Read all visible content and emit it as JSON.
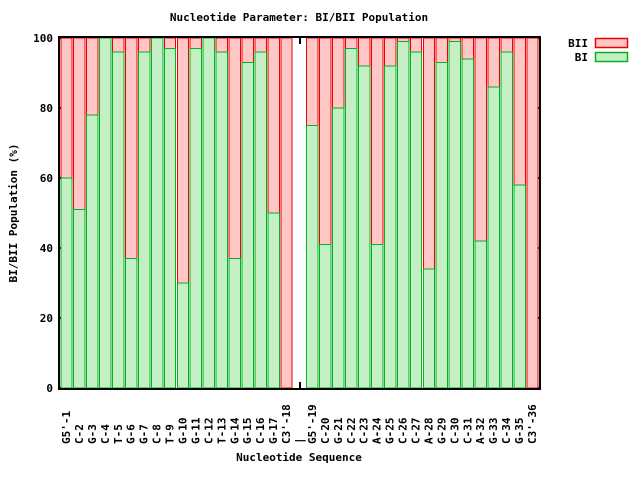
{
  "window": {
    "background": "#ffffff",
    "text_color": "#000000"
  },
  "chart_data": {
    "type": "bar",
    "stacked": true,
    "title": "Nucleotide Parameter: BI/BII Population",
    "xlabel": "Nucleotide Sequence",
    "ylabel": "BI/BII Population (%)",
    "ylim": [
      0,
      100
    ],
    "yticks": [
      0,
      20,
      40,
      60,
      80,
      100
    ],
    "grid": false,
    "legend_position": "top-right-outside",
    "axis_color": "#000000",
    "separator_index": 18,
    "categories": [
      "G5'-1",
      "C-2",
      "G-3",
      "C-4",
      "T-5",
      "G-6",
      "G-7",
      "C-8",
      "T-9",
      "G-10",
      "G-11",
      "C-12",
      "T-13",
      "G-14",
      "G-15",
      "C-16",
      "G-17",
      "C3'-18",
      "|",
      "G5'-19",
      "C-20",
      "G-21",
      "C-22",
      "C-23",
      "A-24",
      "G-25",
      "C-26",
      "C-27",
      "A-28",
      "G-29",
      "C-30",
      "C-31",
      "A-32",
      "G-33",
      "C-34",
      "G-35",
      "C3'-36"
    ],
    "series": [
      {
        "name": "BII",
        "fill": "#ffc6c6",
        "stroke": "#f00000",
        "values": [
          40,
          49,
          22,
          0,
          4,
          63,
          4,
          0,
          3,
          70,
          3,
          0,
          4,
          63,
          7,
          4,
          50,
          100,
          null,
          25,
          59,
          20,
          3,
          8,
          59,
          8,
          1,
          4,
          66,
          7,
          1,
          6,
          58,
          14,
          4,
          42,
          100
        ]
      },
      {
        "name": "BI",
        "fill": "#c4eec4",
        "stroke": "#00b321",
        "values": [
          60,
          51,
          78,
          100,
          96,
          37,
          96,
          100,
          97,
          30,
          97,
          100,
          96,
          37,
          93,
          96,
          50,
          0,
          null,
          75,
          41,
          80,
          97,
          92,
          41,
          92,
          99,
          96,
          34,
          93,
          99,
          94,
          42,
          86,
          96,
          58,
          0
        ]
      }
    ]
  }
}
